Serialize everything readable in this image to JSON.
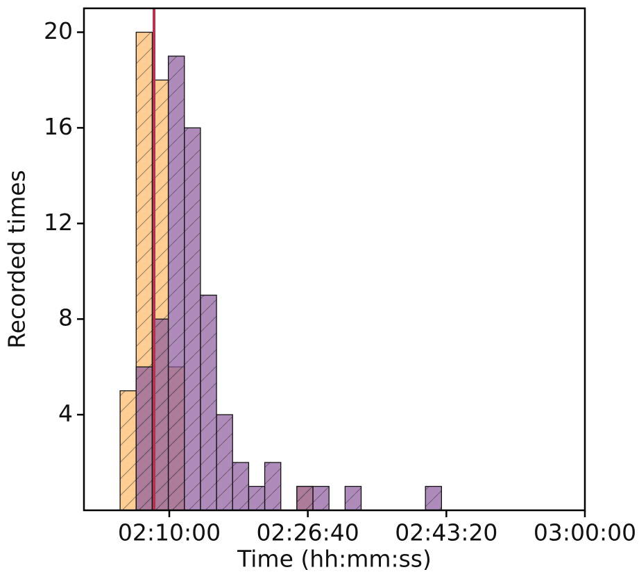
{
  "chart_data": {
    "type": "histogram",
    "x_label": "Time (hh:mm:ss)",
    "y_label": "Recorded times",
    "bins": [
      7445,
      7561,
      7677,
      7793,
      7909,
      8025,
      8141,
      8257,
      8373,
      8489,
      8605,
      8721,
      8837,
      8953,
      9069,
      9185,
      9301,
      9417,
      9533,
      9649,
      9765
    ],
    "series": [
      {
        "color": "#fdb867",
        "values": [
          5,
          20,
          18,
          6,
          0,
          0,
          0,
          0,
          0,
          0,
          0,
          1,
          0,
          0,
          0,
          0,
          0,
          0,
          0,
          0
        ]
      },
      {
        "color": "#8b5a9e",
        "values": [
          0,
          6,
          8,
          19,
          16,
          9,
          4,
          2,
          1,
          2,
          0,
          1,
          1,
          0,
          1,
          0,
          0,
          0,
          0,
          1
        ]
      }
    ],
    "vline": {
      "value": 7690,
      "color": "#b0334f"
    },
    "xlim": [
      7184,
      10800
    ],
    "xticks": [
      {
        "value": 7800,
        "label": "02:10:00"
      },
      {
        "value": 8800,
        "label": "02:26:40"
      },
      {
        "value": 9800,
        "label": "02:43:20"
      },
      {
        "value": 10800,
        "label": "03:00:00"
      }
    ],
    "ylim": [
      0,
      21
    ],
    "yticks": [
      4,
      8,
      12,
      16,
      20
    ]
  }
}
